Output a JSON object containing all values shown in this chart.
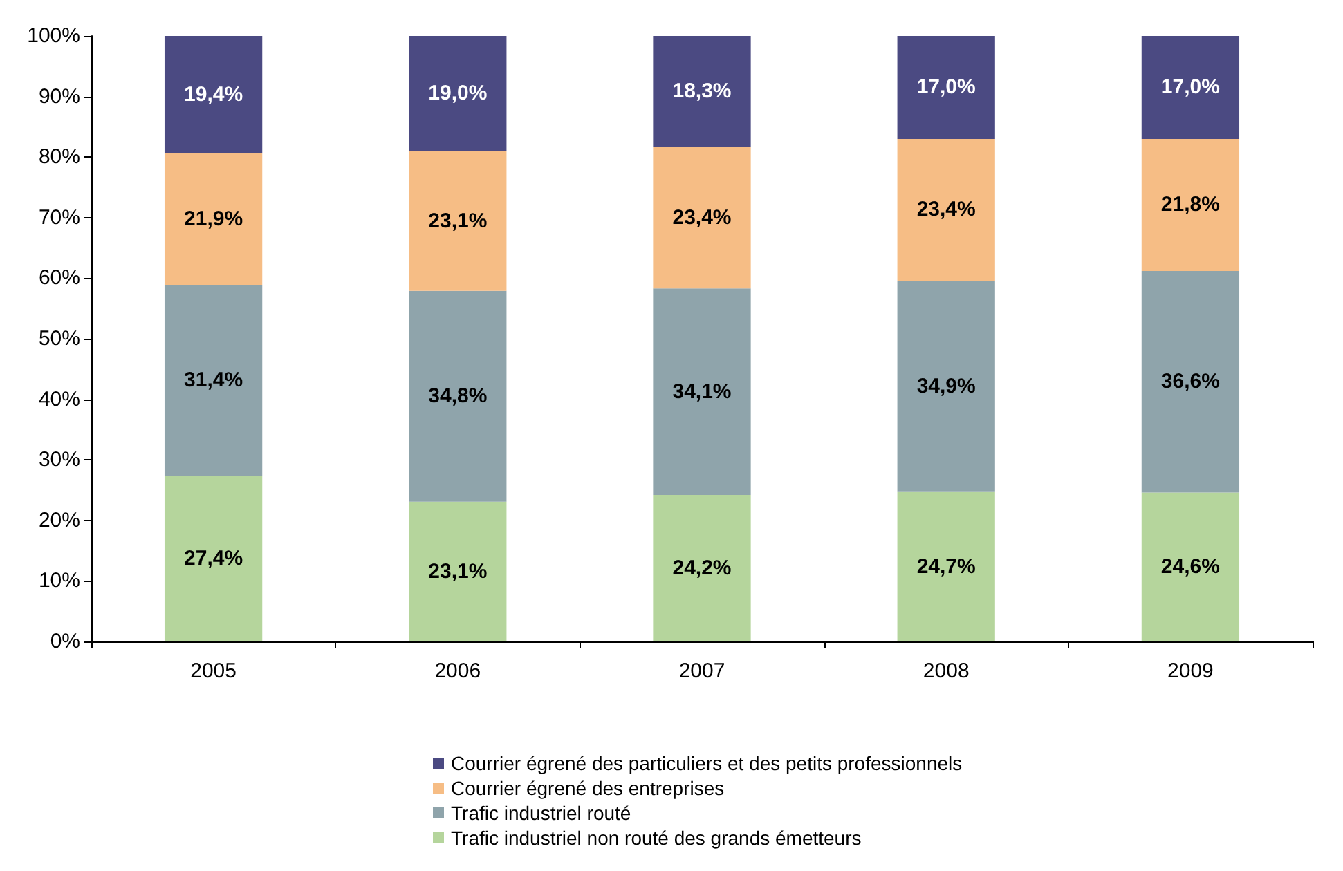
{
  "chart_data": {
    "type": "bar",
    "stacked": true,
    "categories": [
      "2005",
      "2006",
      "2007",
      "2008",
      "2009"
    ],
    "series": [
      {
        "name": "Trafic industriel non routé des grands émetteurs",
        "color": "#b5d59c",
        "values": [
          27.4,
          23.1,
          24.2,
          24.7,
          24.6
        ],
        "value_labels": [
          "27,4%",
          "23,1%",
          "24,2%",
          "24,7%",
          "24,6%"
        ]
      },
      {
        "name": "Trafic industriel routé",
        "color": "#8fa4ab",
        "values": [
          31.4,
          34.8,
          34.1,
          34.9,
          36.6
        ],
        "value_labels": [
          "31,4%",
          "34,8%",
          "34,1%",
          "34,9%",
          "36,6%"
        ]
      },
      {
        "name": "Courrier égrené des entreprises",
        "color": "#f6bd85",
        "values": [
          21.9,
          23.1,
          23.4,
          23.4,
          21.8
        ],
        "value_labels": [
          "21,9%",
          "23,1%",
          "23,4%",
          "23,4%",
          "21,8%"
        ]
      },
      {
        "name": "Courrier égrené des particuliers et des petits professionnels",
        "color": "#4b4a82",
        "values": [
          19.4,
          19.0,
          18.3,
          17.0,
          17.0
        ],
        "value_labels": [
          "19,4%",
          "19,0%",
          "18,3%",
          "17,0%",
          "17,0%"
        ]
      }
    ],
    "ylim": [
      0,
      100
    ],
    "yticks": [
      {
        "value": 0,
        "label": "0%"
      },
      {
        "value": 10,
        "label": "10%"
      },
      {
        "value": 20,
        "label": "20%"
      },
      {
        "value": 30,
        "label": "30%"
      },
      {
        "value": 40,
        "label": "40%"
      },
      {
        "value": 50,
        "label": "50%"
      },
      {
        "value": 60,
        "label": "60%"
      },
      {
        "value": 70,
        "label": "70%"
      },
      {
        "value": 80,
        "label": "80%"
      },
      {
        "value": 90,
        "label": "90%"
      },
      {
        "value": 100,
        "label": "100%"
      }
    ],
    "grid": false,
    "legend": "bottom"
  }
}
